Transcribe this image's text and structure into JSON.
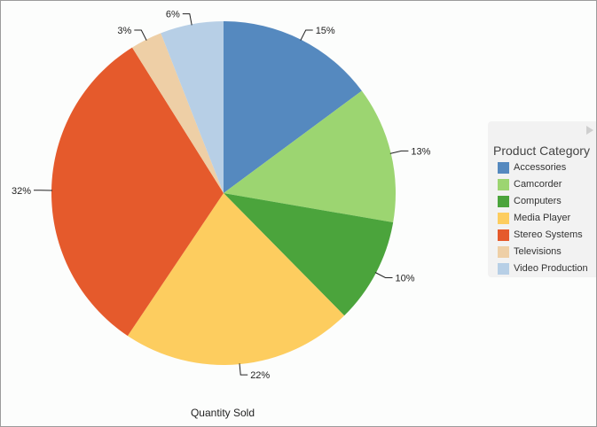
{
  "chart_data": {
    "type": "pie",
    "xlabel": "Quantity Sold",
    "legend_title": "Product Category",
    "legend_position": "right",
    "categories": [
      "Accessories",
      "Camcorder",
      "Computers",
      "Media Player",
      "Stereo Systems",
      "Televisions",
      "Video Production"
    ],
    "values": [
      15,
      13,
      10,
      22,
      32,
      3,
      6
    ],
    "labels": [
      "15%",
      "13%",
      "10%",
      "22%",
      "32%",
      "3%",
      "6%"
    ],
    "colors": [
      "#5589bf",
      "#9cd571",
      "#4ba43c",
      "#fdcd5f",
      "#e55a2c",
      "#eecfa6",
      "#b7cfe6"
    ]
  }
}
